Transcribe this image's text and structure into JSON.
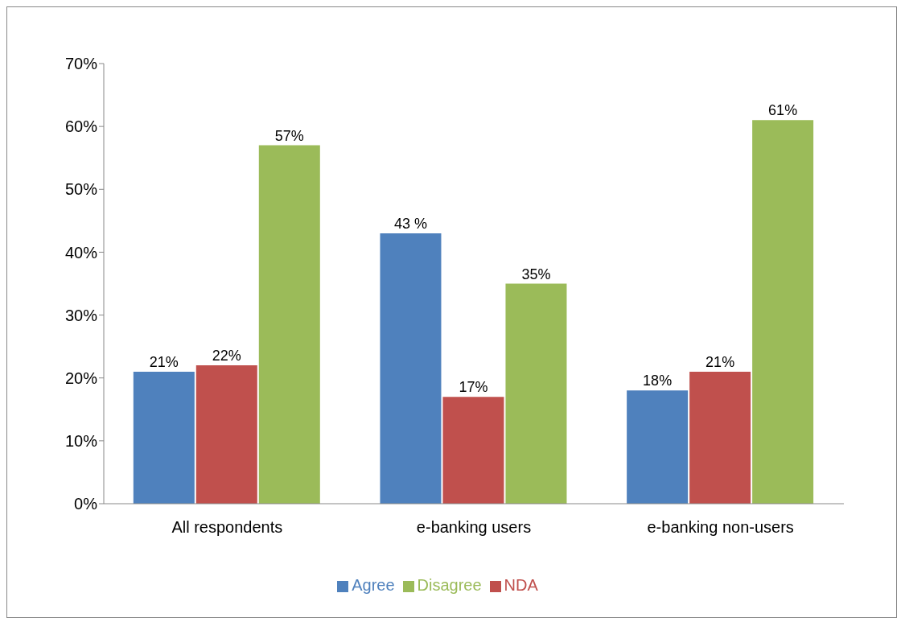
{
  "chart_data": {
    "type": "bar",
    "categories": [
      "All respondents",
      "e-banking users",
      "e-banking non-users"
    ],
    "series": [
      {
        "name": "Agree",
        "color": "#4f81bd",
        "values": [
          21,
          43,
          18
        ],
        "value_labels": [
          "21%",
          "43 %",
          "18%"
        ]
      },
      {
        "name": "NDA",
        "color": "#c0504d",
        "values": [
          22,
          17,
          21
        ],
        "value_labels": [
          "22%",
          "17%",
          "21%"
        ]
      },
      {
        "name": "Disagree",
        "color": "#9bbb59",
        "values": [
          57,
          35,
          61
        ],
        "value_labels": [
          "57%",
          "35%",
          "61%"
        ]
      }
    ],
    "ylim": [
      0,
      70
    ],
    "yticks": [
      {
        "value": 0,
        "label": "0%"
      },
      {
        "value": 10,
        "label": "10%"
      },
      {
        "value": 20,
        "label": "20%"
      },
      {
        "value": 30,
        "label": "30%"
      },
      {
        "value": 40,
        "label": "40%"
      },
      {
        "value": 50,
        "label": "50%"
      },
      {
        "value": 60,
        "label": "60%"
      },
      {
        "value": 70,
        "label": "70%"
      }
    ],
    "legend": "bottom"
  }
}
